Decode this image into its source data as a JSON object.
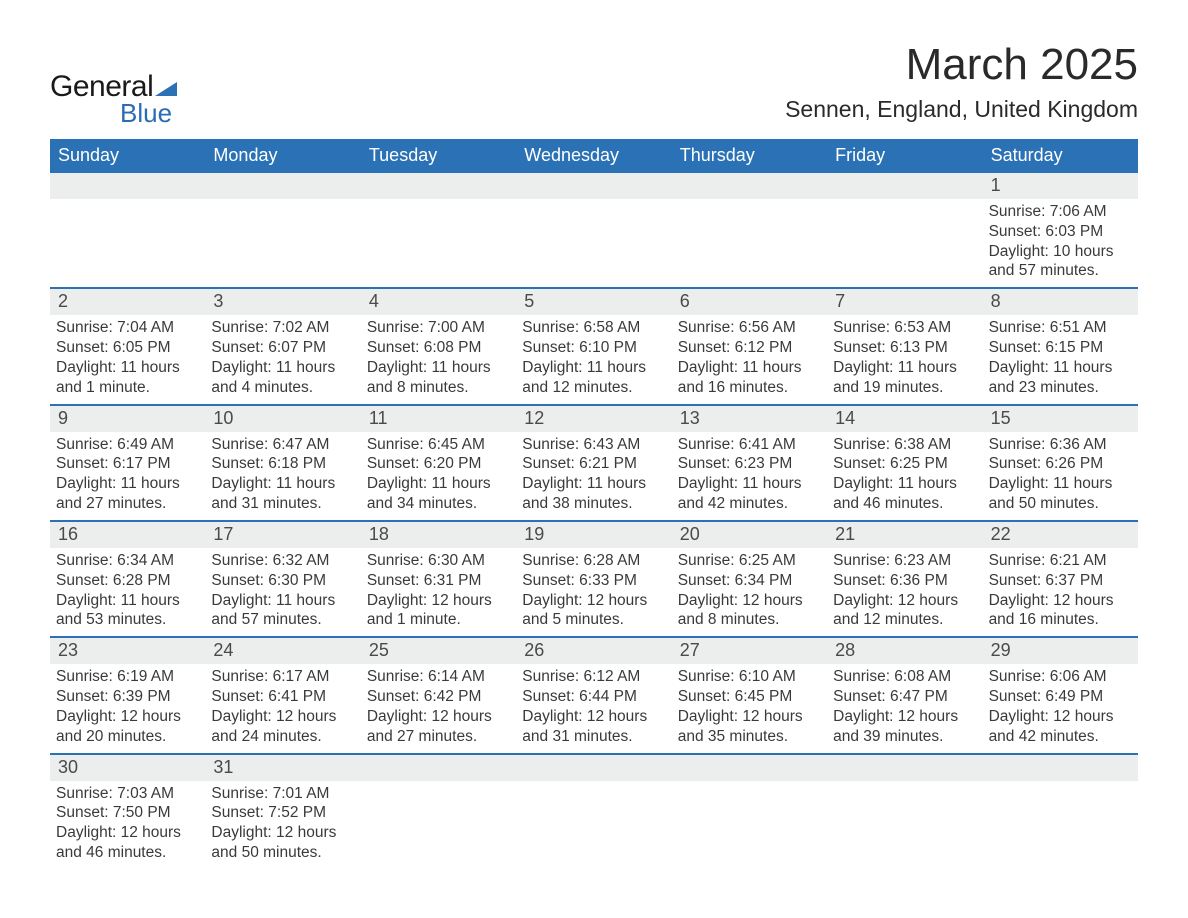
{
  "logo": {
    "text1": "General",
    "text2": "Blue",
    "tri_color": "#2a72b5"
  },
  "title": "March 2025",
  "location": "Sennen, England, United Kingdom",
  "colors": {
    "header_bg": "#2a72b5",
    "header_text": "#ffffff",
    "daynum_bg": "#eceded",
    "body_text": "#3a3a3a",
    "row_border": "#2a72b5"
  },
  "typography": {
    "title_fontsize": 44,
    "location_fontsize": 23,
    "dayheader_fontsize": 18,
    "daynum_fontsize": 18,
    "detail_fontsize": 15.5
  },
  "day_names": [
    "Sunday",
    "Monday",
    "Tuesday",
    "Wednesday",
    "Thursday",
    "Friday",
    "Saturday"
  ],
  "weeks": [
    [
      {
        "n": "",
        "sr": "",
        "ss": "",
        "dl": ""
      },
      {
        "n": "",
        "sr": "",
        "ss": "",
        "dl": ""
      },
      {
        "n": "",
        "sr": "",
        "ss": "",
        "dl": ""
      },
      {
        "n": "",
        "sr": "",
        "ss": "",
        "dl": ""
      },
      {
        "n": "",
        "sr": "",
        "ss": "",
        "dl": ""
      },
      {
        "n": "",
        "sr": "",
        "ss": "",
        "dl": ""
      },
      {
        "n": "1",
        "sr": "Sunrise: 7:06 AM",
        "ss": "Sunset: 6:03 PM",
        "dl": "Daylight: 10 hours and 57 minutes."
      }
    ],
    [
      {
        "n": "2",
        "sr": "Sunrise: 7:04 AM",
        "ss": "Sunset: 6:05 PM",
        "dl": "Daylight: 11 hours and 1 minute."
      },
      {
        "n": "3",
        "sr": "Sunrise: 7:02 AM",
        "ss": "Sunset: 6:07 PM",
        "dl": "Daylight: 11 hours and 4 minutes."
      },
      {
        "n": "4",
        "sr": "Sunrise: 7:00 AM",
        "ss": "Sunset: 6:08 PM",
        "dl": "Daylight: 11 hours and 8 minutes."
      },
      {
        "n": "5",
        "sr": "Sunrise: 6:58 AM",
        "ss": "Sunset: 6:10 PM",
        "dl": "Daylight: 11 hours and 12 minutes."
      },
      {
        "n": "6",
        "sr": "Sunrise: 6:56 AM",
        "ss": "Sunset: 6:12 PM",
        "dl": "Daylight: 11 hours and 16 minutes."
      },
      {
        "n": "7",
        "sr": "Sunrise: 6:53 AM",
        "ss": "Sunset: 6:13 PM",
        "dl": "Daylight: 11 hours and 19 minutes."
      },
      {
        "n": "8",
        "sr": "Sunrise: 6:51 AM",
        "ss": "Sunset: 6:15 PM",
        "dl": "Daylight: 11 hours and 23 minutes."
      }
    ],
    [
      {
        "n": "9",
        "sr": "Sunrise: 6:49 AM",
        "ss": "Sunset: 6:17 PM",
        "dl": "Daylight: 11 hours and 27 minutes."
      },
      {
        "n": "10",
        "sr": "Sunrise: 6:47 AM",
        "ss": "Sunset: 6:18 PM",
        "dl": "Daylight: 11 hours and 31 minutes."
      },
      {
        "n": "11",
        "sr": "Sunrise: 6:45 AM",
        "ss": "Sunset: 6:20 PM",
        "dl": "Daylight: 11 hours and 34 minutes."
      },
      {
        "n": "12",
        "sr": "Sunrise: 6:43 AM",
        "ss": "Sunset: 6:21 PM",
        "dl": "Daylight: 11 hours and 38 minutes."
      },
      {
        "n": "13",
        "sr": "Sunrise: 6:41 AM",
        "ss": "Sunset: 6:23 PM",
        "dl": "Daylight: 11 hours and 42 minutes."
      },
      {
        "n": "14",
        "sr": "Sunrise: 6:38 AM",
        "ss": "Sunset: 6:25 PM",
        "dl": "Daylight: 11 hours and 46 minutes."
      },
      {
        "n": "15",
        "sr": "Sunrise: 6:36 AM",
        "ss": "Sunset: 6:26 PM",
        "dl": "Daylight: 11 hours and 50 minutes."
      }
    ],
    [
      {
        "n": "16",
        "sr": "Sunrise: 6:34 AM",
        "ss": "Sunset: 6:28 PM",
        "dl": "Daylight: 11 hours and 53 minutes."
      },
      {
        "n": "17",
        "sr": "Sunrise: 6:32 AM",
        "ss": "Sunset: 6:30 PM",
        "dl": "Daylight: 11 hours and 57 minutes."
      },
      {
        "n": "18",
        "sr": "Sunrise: 6:30 AM",
        "ss": "Sunset: 6:31 PM",
        "dl": "Daylight: 12 hours and 1 minute."
      },
      {
        "n": "19",
        "sr": "Sunrise: 6:28 AM",
        "ss": "Sunset: 6:33 PM",
        "dl": "Daylight: 12 hours and 5 minutes."
      },
      {
        "n": "20",
        "sr": "Sunrise: 6:25 AM",
        "ss": "Sunset: 6:34 PM",
        "dl": "Daylight: 12 hours and 8 minutes."
      },
      {
        "n": "21",
        "sr": "Sunrise: 6:23 AM",
        "ss": "Sunset: 6:36 PM",
        "dl": "Daylight: 12 hours and 12 minutes."
      },
      {
        "n": "22",
        "sr": "Sunrise: 6:21 AM",
        "ss": "Sunset: 6:37 PM",
        "dl": "Daylight: 12 hours and 16 minutes."
      }
    ],
    [
      {
        "n": "23",
        "sr": "Sunrise: 6:19 AM",
        "ss": "Sunset: 6:39 PM",
        "dl": "Daylight: 12 hours and 20 minutes."
      },
      {
        "n": "24",
        "sr": "Sunrise: 6:17 AM",
        "ss": "Sunset: 6:41 PM",
        "dl": "Daylight: 12 hours and 24 minutes."
      },
      {
        "n": "25",
        "sr": "Sunrise: 6:14 AM",
        "ss": "Sunset: 6:42 PM",
        "dl": "Daylight: 12 hours and 27 minutes."
      },
      {
        "n": "26",
        "sr": "Sunrise: 6:12 AM",
        "ss": "Sunset: 6:44 PM",
        "dl": "Daylight: 12 hours and 31 minutes."
      },
      {
        "n": "27",
        "sr": "Sunrise: 6:10 AM",
        "ss": "Sunset: 6:45 PM",
        "dl": "Daylight: 12 hours and 35 minutes."
      },
      {
        "n": "28",
        "sr": "Sunrise: 6:08 AM",
        "ss": "Sunset: 6:47 PM",
        "dl": "Daylight: 12 hours and 39 minutes."
      },
      {
        "n": "29",
        "sr": "Sunrise: 6:06 AM",
        "ss": "Sunset: 6:49 PM",
        "dl": "Daylight: 12 hours and 42 minutes."
      }
    ],
    [
      {
        "n": "30",
        "sr": "Sunrise: 7:03 AM",
        "ss": "Sunset: 7:50 PM",
        "dl": "Daylight: 12 hours and 46 minutes."
      },
      {
        "n": "31",
        "sr": "Sunrise: 7:01 AM",
        "ss": "Sunset: 7:52 PM",
        "dl": "Daylight: 12 hours and 50 minutes."
      },
      {
        "n": "",
        "sr": "",
        "ss": "",
        "dl": ""
      },
      {
        "n": "",
        "sr": "",
        "ss": "",
        "dl": ""
      },
      {
        "n": "",
        "sr": "",
        "ss": "",
        "dl": ""
      },
      {
        "n": "",
        "sr": "",
        "ss": "",
        "dl": ""
      },
      {
        "n": "",
        "sr": "",
        "ss": "",
        "dl": ""
      }
    ]
  ]
}
